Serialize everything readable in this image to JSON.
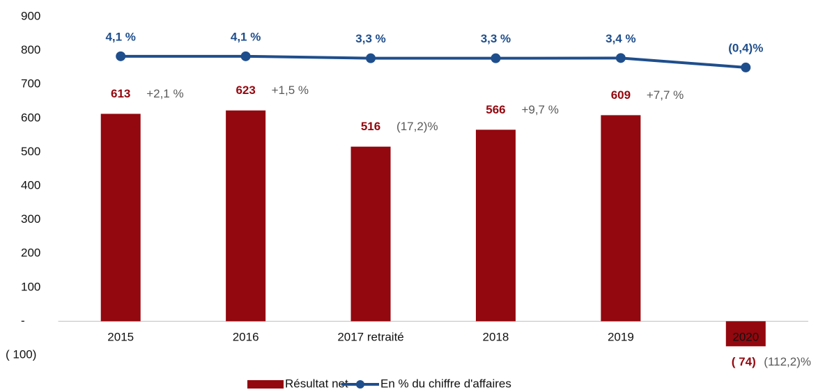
{
  "chart_data": {
    "type": "bar-line",
    "categories": [
      "2015",
      "2016",
      "2017 retraité",
      "2018",
      "2019",
      "2020"
    ],
    "ylim": [
      -100,
      900
    ],
    "yticks": [
      {
        "value": -100,
        "label": "( 100)"
      },
      {
        "value": 0,
        "label": "-"
      },
      100,
      200,
      300,
      400,
      500,
      600,
      700,
      800,
      900
    ],
    "y2lim": [
      -116,
      20
    ],
    "series": [
      {
        "name": "Résultat net",
        "type": "bar",
        "color": "#93070e",
        "values": [
          613,
          623,
          516,
          566,
          609,
          -74
        ],
        "value_labels": [
          "613",
          "623",
          "516",
          "566",
          "609",
          "( 74)"
        ],
        "annotations": [
          "+2,1 %",
          "+1,5 %",
          "(17,2)%",
          "+9,7 %",
          "+7,7 %",
          "(112,2)%"
        ]
      },
      {
        "name": "En % du chiffre d'affaires",
        "type": "line",
        "axis": "y2",
        "color": "#1f4e8c",
        "values": [
          4.1,
          4.1,
          3.3,
          3.3,
          3.4,
          -0.4
        ],
        "value_labels": [
          "4,1 %",
          "4,1 %",
          "3,3 %",
          "3,3 %",
          "3,4 %",
          "(0,4)%"
        ]
      }
    ]
  }
}
